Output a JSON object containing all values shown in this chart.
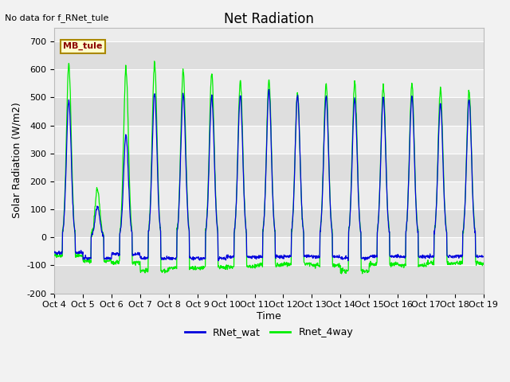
{
  "title": "Net Radiation",
  "no_data_text": "No data for f_RNet_tule",
  "mb_tule_label": "MB_tule",
  "ylabel": "Solar Radiation (W/m2)",
  "xlabel": "Time",
  "ylim": [
    -200,
    750
  ],
  "yticks": [
    -200,
    -100,
    0,
    100,
    200,
    300,
    400,
    500,
    600,
    700
  ],
  "xtick_labels": [
    "Oct 4",
    "Oct 5",
    "Oct 6",
    "Oct 7",
    "Oct 8",
    "Oct 9",
    "Oct 10",
    "Oct 11",
    "Oct 12",
    "Oct 13",
    "Oct 14",
    "Oct 15",
    "Oct 16",
    "Oct 17",
    "Oct 18",
    "Oct 19"
  ],
  "line_blue_color": "#0000dd",
  "line_green_color": "#00ee00",
  "bg_light": "#ececec",
  "bg_dark": "#dedede",
  "legend_line1": "RNet_wat",
  "legend_line2": "Rnet_4way",
  "title_fontsize": 12,
  "label_fontsize": 9,
  "tick_fontsize": 8,
  "green_peaks": [
    620,
    170,
    600,
    625,
    595,
    585,
    560,
    560,
    515,
    550,
    555,
    540,
    550,
    530,
    525
  ],
  "blue_peaks": [
    490,
    110,
    365,
    515,
    510,
    505,
    510,
    525,
    505,
    505,
    500,
    500,
    505,
    480,
    495
  ],
  "green_night": [
    -65,
    -85,
    -90,
    -120,
    -110,
    -110,
    -105,
    -100,
    -95,
    -100,
    -120,
    -95,
    -100,
    -93,
    -93
  ],
  "blue_night": [
    -55,
    -75,
    -60,
    -75,
    -75,
    -75,
    -70,
    -70,
    -68,
    -70,
    -75,
    -68,
    -70,
    -68,
    -68
  ],
  "day_start": 0.28,
  "day_end": 0.72
}
